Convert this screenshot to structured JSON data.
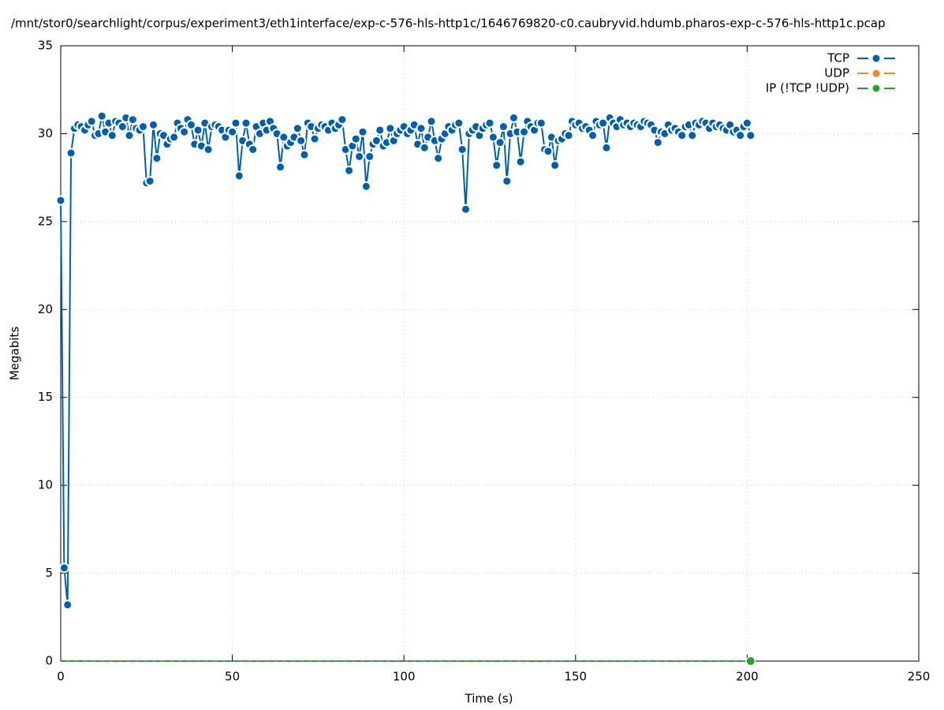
{
  "chart_data": {
    "type": "line",
    "title": "/mnt/stor0/searchlight/corpus/experiment3/eth1interface/exp-c-576-hls-http1c/1646769820-c0.caubryvid.hdumb.pharos-exp-c-576-hls-http1c.pcap",
    "x_label": "Time (s)",
    "y_label": "Megabits",
    "xlim": [
      0,
      250
    ],
    "xticks": [
      0,
      50,
      100,
      150,
      200,
      250
    ],
    "ylim": [
      0,
      35
    ],
    "yticks": [
      0,
      5,
      10,
      15,
      20,
      25,
      30,
      35
    ],
    "grid": true,
    "legend": "top-right",
    "x": [
      0,
      1,
      2,
      3,
      4,
      5,
      6,
      7,
      8,
      9,
      10,
      11,
      12,
      13,
      14,
      15,
      16,
      17,
      18,
      19,
      20,
      21,
      22,
      23,
      24,
      25,
      26,
      27,
      28,
      29,
      30,
      31,
      32,
      33,
      34,
      35,
      36,
      37,
      38,
      39,
      40,
      41,
      42,
      43,
      44,
      45,
      46,
      47,
      48,
      49,
      50,
      51,
      52,
      53,
      54,
      55,
      56,
      57,
      58,
      59,
      60,
      61,
      62,
      63,
      64,
      65,
      66,
      67,
      68,
      69,
      70,
      71,
      72,
      73,
      74,
      75,
      76,
      77,
      78,
      79,
      80,
      81,
      82,
      83,
      84,
      85,
      86,
      87,
      88,
      89,
      90,
      91,
      92,
      93,
      94,
      95,
      96,
      97,
      98,
      99,
      100,
      101,
      102,
      103,
      104,
      105,
      106,
      107,
      108,
      109,
      110,
      111,
      112,
      113,
      114,
      115,
      116,
      117,
      118,
      119,
      120,
      121,
      122,
      123,
      124,
      125,
      126,
      127,
      128,
      129,
      130,
      131,
      132,
      133,
      134,
      135,
      136,
      137,
      138,
      139,
      140,
      141,
      142,
      143,
      144,
      145,
      146,
      147,
      148,
      149,
      150,
      151,
      152,
      153,
      154,
      155,
      156,
      157,
      158,
      159,
      160,
      161,
      162,
      163,
      164,
      165,
      166,
      167,
      168,
      169,
      170,
      171,
      172,
      173,
      174,
      175,
      176,
      177,
      178,
      179,
      180,
      181,
      182,
      183,
      184,
      185,
      186,
      187,
      188,
      189,
      190,
      191,
      192,
      193,
      194,
      195,
      196,
      197,
      198,
      199,
      200,
      201
    ],
    "series": [
      {
        "name": "TCP",
        "color": "#005fad",
        "values": [
          26.2,
          5.3,
          3.2,
          28.9,
          30.3,
          30.5,
          30.4,
          30.2,
          30.5,
          30.7,
          29.9,
          30.0,
          31.0,
          30.1,
          30.6,
          29.9,
          30.7,
          30.6,
          30.4,
          30.9,
          29.9,
          30.8,
          30.3,
          30.2,
          30.4,
          27.2,
          27.3,
          30.5,
          28.6,
          30.0,
          29.9,
          29.4,
          29.7,
          29.8,
          30.6,
          30.3,
          30.1,
          30.8,
          30.5,
          29.4,
          30.2,
          29.3,
          30.6,
          29.1,
          30.4,
          30.5,
          30.4,
          30.2,
          29.8,
          30.2,
          30.1,
          30.6,
          27.6,
          29.6,
          30.6,
          29.4,
          29.1,
          30.4,
          30.0,
          30.6,
          30.2,
          30.7,
          30.3,
          30.0,
          28.1,
          29.8,
          29.3,
          29.5,
          29.8,
          30.3,
          29.6,
          28.8,
          30.6,
          30.4,
          29.7,
          30.3,
          30.5,
          30.4,
          30.2,
          30.6,
          30.3,
          30.5,
          30.8,
          29.1,
          27.9,
          29.3,
          29.7,
          28.7,
          30.1,
          27.0,
          28.7,
          29.4,
          29.6,
          30.2,
          29.3,
          29.5,
          30.3,
          29.6,
          30.0,
          30.2,
          30.4,
          30.0,
          30.2,
          30.5,
          29.4,
          30.3,
          29.2,
          29.8,
          30.7,
          29.6,
          28.6,
          29.7,
          30.0,
          30.4,
          30.2,
          30.5,
          30.6,
          29.1,
          25.7,
          30.0,
          30.2,
          30.4,
          29.9,
          30.3,
          30.5,
          30.6,
          29.8,
          28.2,
          29.5,
          30.4,
          27.3,
          30.0,
          30.9,
          30.1,
          28.4,
          30.1,
          30.7,
          30.4,
          30.2,
          30.6,
          30.6,
          29.1,
          29.0,
          29.8,
          28.2,
          29.6,
          29.7,
          30.0,
          29.9,
          30.7,
          30.5,
          30.6,
          30.3,
          30.4,
          30.2,
          29.9,
          30.7,
          30.5,
          30.6,
          29.2,
          30.9,
          30.6,
          30.4,
          30.8,
          30.5,
          30.6,
          30.4,
          30.6,
          30.5,
          30.4,
          30.7,
          30.6,
          30.5,
          30.2,
          29.5,
          30.1,
          30.0,
          30.5,
          30.2,
          30.3,
          30.1,
          29.9,
          30.4,
          30.5,
          29.9,
          30.6,
          30.5,
          30.7,
          30.6,
          30.3,
          30.6,
          30.4,
          30.5,
          30.3,
          30.2,
          30.5,
          30.1,
          30.2,
          29.9,
          30.4,
          30.6,
          29.9
        ]
      },
      {
        "name": "UDP",
        "color": "#f58518",
        "values": [
          0,
          0,
          0,
          0,
          0,
          0,
          0,
          0,
          0,
          0,
          0,
          0,
          0,
          0,
          0,
          0,
          0,
          0,
          0,
          0,
          0,
          0,
          0,
          0,
          0,
          0,
          0,
          0,
          0,
          0,
          0,
          0,
          0,
          0,
          0,
          0,
          0,
          0,
          0,
          0,
          0,
          0,
          0,
          0,
          0,
          0,
          0,
          0,
          0,
          0,
          0,
          0,
          0,
          0,
          0,
          0,
          0,
          0,
          0,
          0,
          0,
          0,
          0,
          0,
          0,
          0,
          0,
          0,
          0,
          0,
          0,
          0,
          0,
          0,
          0,
          0,
          0,
          0,
          0,
          0,
          0,
          0,
          0,
          0,
          0,
          0,
          0,
          0,
          0,
          0,
          0,
          0,
          0,
          0,
          0,
          0,
          0,
          0,
          0,
          0,
          0,
          0,
          0,
          0,
          0,
          0,
          0,
          0,
          0,
          0,
          0,
          0,
          0,
          0,
          0,
          0,
          0,
          0,
          0,
          0,
          0,
          0,
          0,
          0,
          0,
          0,
          0,
          0,
          0,
          0,
          0,
          0,
          0,
          0,
          0,
          0,
          0,
          0,
          0,
          0,
          0,
          0,
          0,
          0,
          0,
          0,
          0,
          0,
          0,
          0,
          0,
          0,
          0,
          0,
          0,
          0,
          0,
          0,
          0,
          0,
          0,
          0,
          0,
          0,
          0,
          0,
          0,
          0,
          0,
          0,
          0,
          0,
          0,
          0,
          0,
          0,
          0,
          0,
          0,
          0,
          0,
          0,
          0,
          0,
          0,
          0,
          0,
          0,
          0,
          0,
          0,
          0,
          0,
          0,
          0,
          0,
          0,
          0,
          0,
          0,
          0,
          0
        ]
      },
      {
        "name": "IP (!TCP  !UDP)",
        "color": "#2ca02c",
        "values": [
          0,
          0,
          0,
          0,
          0,
          0,
          0,
          0,
          0,
          0,
          0,
          0,
          0,
          0,
          0,
          0,
          0,
          0,
          0,
          0,
          0,
          0,
          0,
          0,
          0,
          0,
          0,
          0,
          0,
          0,
          0,
          0,
          0,
          0,
          0,
          0,
          0,
          0,
          0,
          0,
          0,
          0,
          0,
          0,
          0,
          0,
          0,
          0,
          0,
          0,
          0,
          0,
          0,
          0,
          0,
          0,
          0,
          0,
          0,
          0,
          0,
          0,
          0,
          0,
          0,
          0,
          0,
          0,
          0,
          0,
          0,
          0,
          0,
          0,
          0,
          0,
          0,
          0,
          0,
          0,
          0,
          0,
          0,
          0,
          0,
          0,
          0,
          0,
          0,
          0,
          0,
          0,
          0,
          0,
          0,
          0,
          0,
          0,
          0,
          0,
          0,
          0,
          0,
          0,
          0,
          0,
          0,
          0,
          0,
          0,
          0,
          0,
          0,
          0,
          0,
          0,
          0,
          0,
          0,
          0,
          0,
          0,
          0,
          0,
          0,
          0,
          0,
          0,
          0,
          0,
          0,
          0,
          0,
          0,
          0,
          0,
          0,
          0,
          0,
          0,
          0,
          0,
          0,
          0,
          0,
          0,
          0,
          0,
          0,
          0,
          0,
          0,
          0,
          0,
          0,
          0,
          0,
          0,
          0,
          0,
          0,
          0,
          0,
          0,
          0,
          0,
          0,
          0,
          0,
          0,
          0,
          0,
          0,
          0,
          0,
          0,
          0,
          0,
          0,
          0,
          0,
          0,
          0,
          0,
          0,
          0,
          0,
          0,
          0,
          0,
          0,
          0,
          0,
          0,
          0,
          0,
          0,
          0,
          0,
          0,
          0,
          0
        ]
      }
    ]
  }
}
